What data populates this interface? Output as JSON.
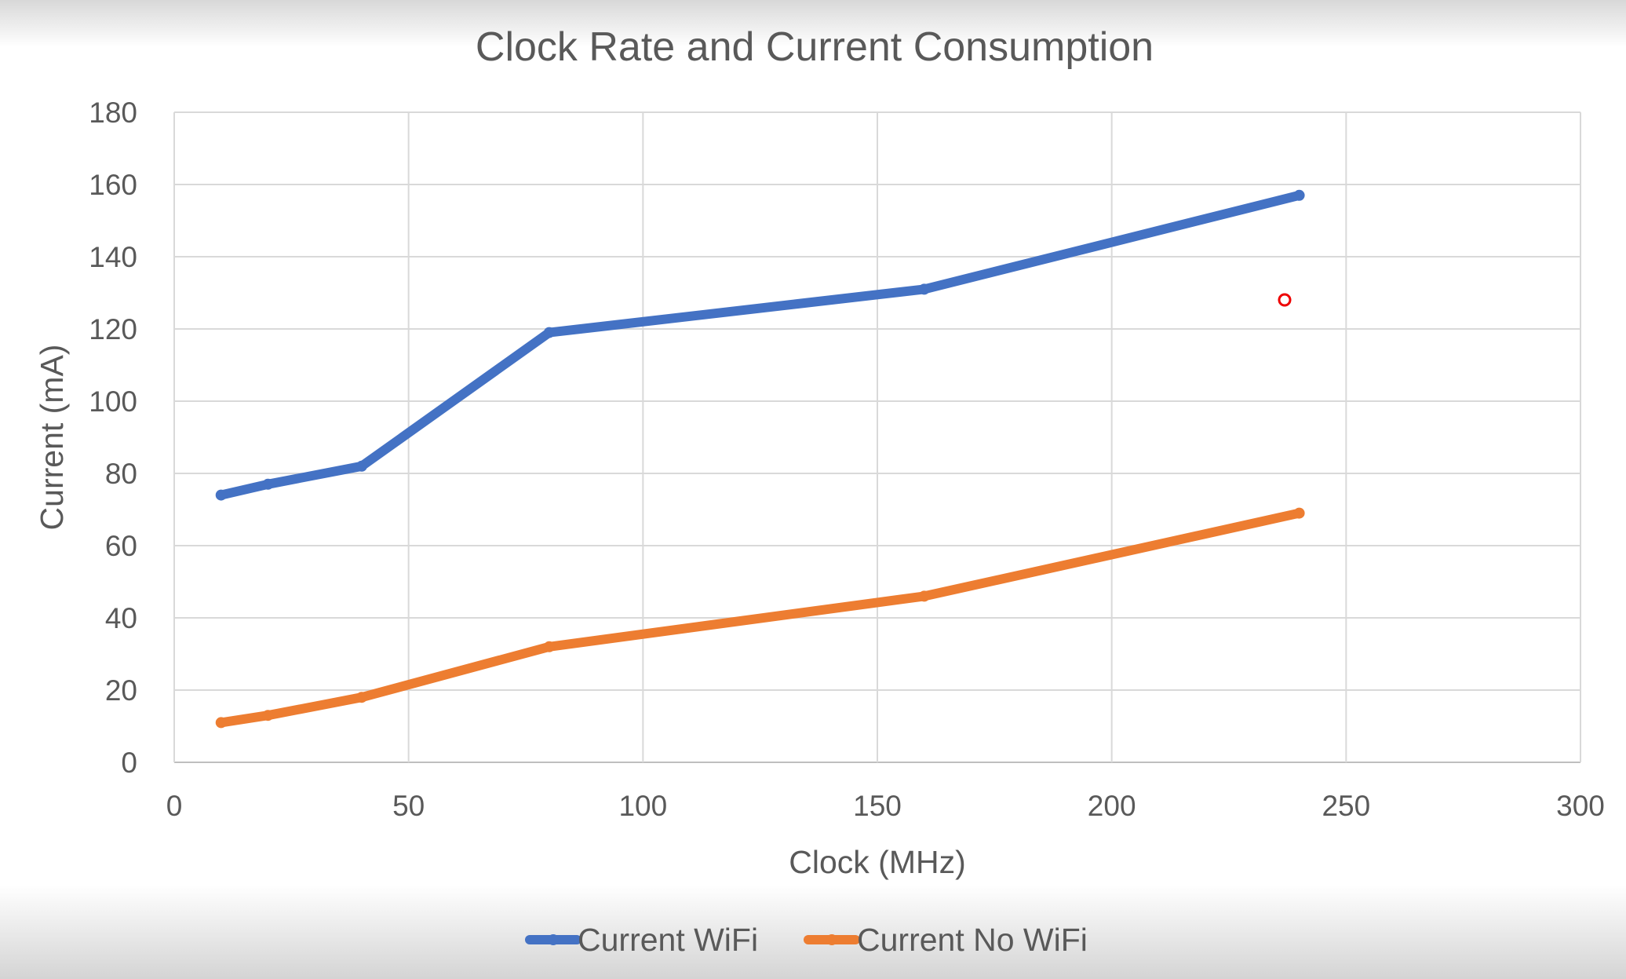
{
  "chart_data": {
    "type": "line",
    "title": "Clock Rate and Current Consumption",
    "xlabel": "Clock (MHz)",
    "ylabel": "Current (mA)",
    "xlim": [
      0,
      300
    ],
    "ylim": [
      0,
      180
    ],
    "xticks": [
      0,
      50,
      100,
      150,
      200,
      250,
      300
    ],
    "yticks": [
      0,
      20,
      40,
      60,
      80,
      100,
      120,
      140,
      160,
      180
    ],
    "grid": true,
    "legend_position": "bottom",
    "series": [
      {
        "name": "Current WiFi",
        "color": "#4472C4",
        "x": [
          10,
          20,
          40,
          80,
          160,
          240
        ],
        "y": [
          74,
          77,
          82,
          119,
          131,
          157
        ]
      },
      {
        "name": "Current No WiFi",
        "color": "#ED7D31",
        "x": [
          10,
          20,
          40,
          80,
          160,
          240
        ],
        "y": [
          11,
          13,
          18,
          32,
          46,
          69
        ]
      }
    ]
  }
}
